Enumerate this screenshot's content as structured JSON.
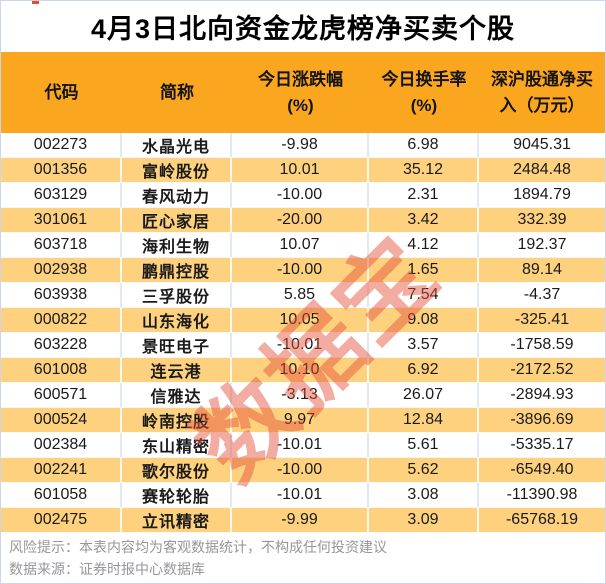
{
  "title": "4月3日北向资金龙虎榜净买卖个股",
  "watermark_text": "数据宝",
  "header": {
    "col0": "代码",
    "col1": "简称",
    "col2_line1": "今日涨跌幅",
    "col2_line2": "(%)",
    "col3_line1": "今日换手率",
    "col3_line2": "(%)",
    "col4_line1": "深沪股通净买",
    "col4_line2": "入（万元）"
  },
  "chart_data": {
    "type": "table",
    "title": "4月3日北向资金龙虎榜净买卖个股",
    "columns": [
      "代码",
      "简称",
      "今日涨跌幅(%)",
      "今日换手率(%)",
      "深沪股通净买入（万元）"
    ],
    "rows": [
      [
        "002273",
        "水晶光电",
        "-9.98",
        "6.98",
        "9045.31"
      ],
      [
        "001356",
        "富岭股份",
        "10.01",
        "35.12",
        "2484.48"
      ],
      [
        "603129",
        "春风动力",
        "-10.00",
        "2.31",
        "1894.79"
      ],
      [
        "301061",
        "匠心家居",
        "-20.00",
        "3.42",
        "332.39"
      ],
      [
        "603718",
        "海利生物",
        "10.07",
        "4.12",
        "192.37"
      ],
      [
        "002938",
        "鹏鼎控股",
        "-10.00",
        "1.65",
        "89.14"
      ],
      [
        "603938",
        "三孚股份",
        "5.85",
        "7.54",
        "-4.37"
      ],
      [
        "000822",
        "山东海化",
        "10.05",
        "9.08",
        "-325.41"
      ],
      [
        "603228",
        "景旺电子",
        "-10.01",
        "3.57",
        "-1758.59"
      ],
      [
        "601008",
        "连云港",
        "10.10",
        "6.92",
        "-2172.52"
      ],
      [
        "600571",
        "信雅达",
        "-3.13",
        "26.07",
        "-2894.93"
      ],
      [
        "000524",
        "岭南控股",
        "9.97",
        "12.84",
        "-3896.69"
      ],
      [
        "002384",
        "东山精密",
        "-10.01",
        "5.61",
        "-5335.17"
      ],
      [
        "002241",
        "歌尔股份",
        "-10.00",
        "5.62",
        "-6549.40"
      ],
      [
        "601058",
        "赛轮轮胎",
        "-10.01",
        "3.08",
        "-11390.98"
      ],
      [
        "002475",
        "立讯精密",
        "-9.99",
        "3.09",
        "-65768.19"
      ]
    ]
  },
  "footer": {
    "risk": "风险提示：本表内容均为客观数据统计，不构成任何投资建议",
    "source": "数据来源：证券时报中心数据库"
  },
  "colors": {
    "header_bg": "#fba61f",
    "row_alt_bg": "#fdd17e",
    "watermark": "#e4523c",
    "footer_text": "#97979b",
    "page_border": "#cdd5e8"
  }
}
